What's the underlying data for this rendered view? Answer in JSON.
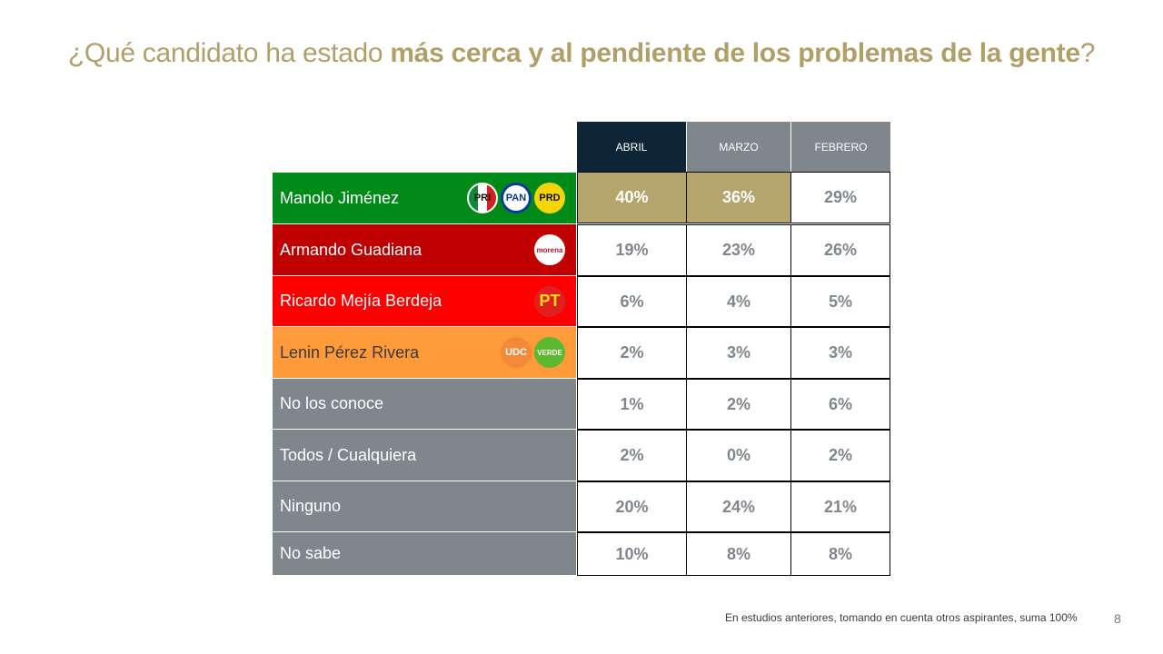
{
  "title": {
    "prefix": "¿Qué candidato ha estado ",
    "bold": "más cerca y al pendiente de los problemas de la gente",
    "suffix": "?"
  },
  "columns": [
    "ABRIL",
    "MARZO",
    "FEBRERO"
  ],
  "rows": [
    {
      "label": "Manolo Jiménez",
      "color": "#008a18",
      "parties": [
        "PRI",
        "PAN",
        "PRD"
      ],
      "values": [
        "40%",
        "36%",
        "29%"
      ],
      "highlight": [
        true,
        true,
        false
      ]
    },
    {
      "label": "Armando Guadiana",
      "color": "#c00000",
      "parties": [
        "morena"
      ],
      "values": [
        "19%",
        "23%",
        "26%"
      ],
      "highlight": [
        false,
        false,
        false
      ]
    },
    {
      "label": "Ricardo Mejía Berdeja",
      "color": "#ff0000",
      "parties": [
        "PT"
      ],
      "values": [
        "6%",
        "4%",
        "5%"
      ],
      "highlight": [
        false,
        false,
        false
      ]
    },
    {
      "label": "Lenin Pérez Rivera",
      "color": "#ff9a3a",
      "parties": [
        "UDC",
        "VERDE"
      ],
      "values": [
        "2%",
        "3%",
        "3%"
      ],
      "highlight": [
        false,
        false,
        false
      ]
    },
    {
      "label": "No los conoce",
      "color": "#7f868c",
      "parties": [],
      "values": [
        "1%",
        "2%",
        "6%"
      ],
      "highlight": [
        false,
        false,
        false
      ]
    },
    {
      "label": "Todos / Cualquiera",
      "color": "#7f868c",
      "parties": [],
      "values": [
        "2%",
        "0%",
        "2%"
      ],
      "highlight": [
        false,
        false,
        false
      ]
    },
    {
      "label": "Ninguno",
      "color": "#7f868c",
      "parties": [],
      "values": [
        "20%",
        "24%",
        "21%"
      ],
      "highlight": [
        false,
        false,
        false
      ]
    },
    {
      "label": "No sabe",
      "color": "#7f868c",
      "parties": [],
      "values": [
        "10%",
        "8%",
        "8%"
      ],
      "highlight": [
        false,
        false,
        false
      ]
    }
  ],
  "footnote": "En estudios anteriores, tomando en cuenta otros aspirantes, suma 100%",
  "page_number": "8",
  "colors": {
    "accent": "#b09f67",
    "header_current": "#0d2537",
    "header_past": "#7f868c",
    "highlight": "#b5a46b"
  }
}
